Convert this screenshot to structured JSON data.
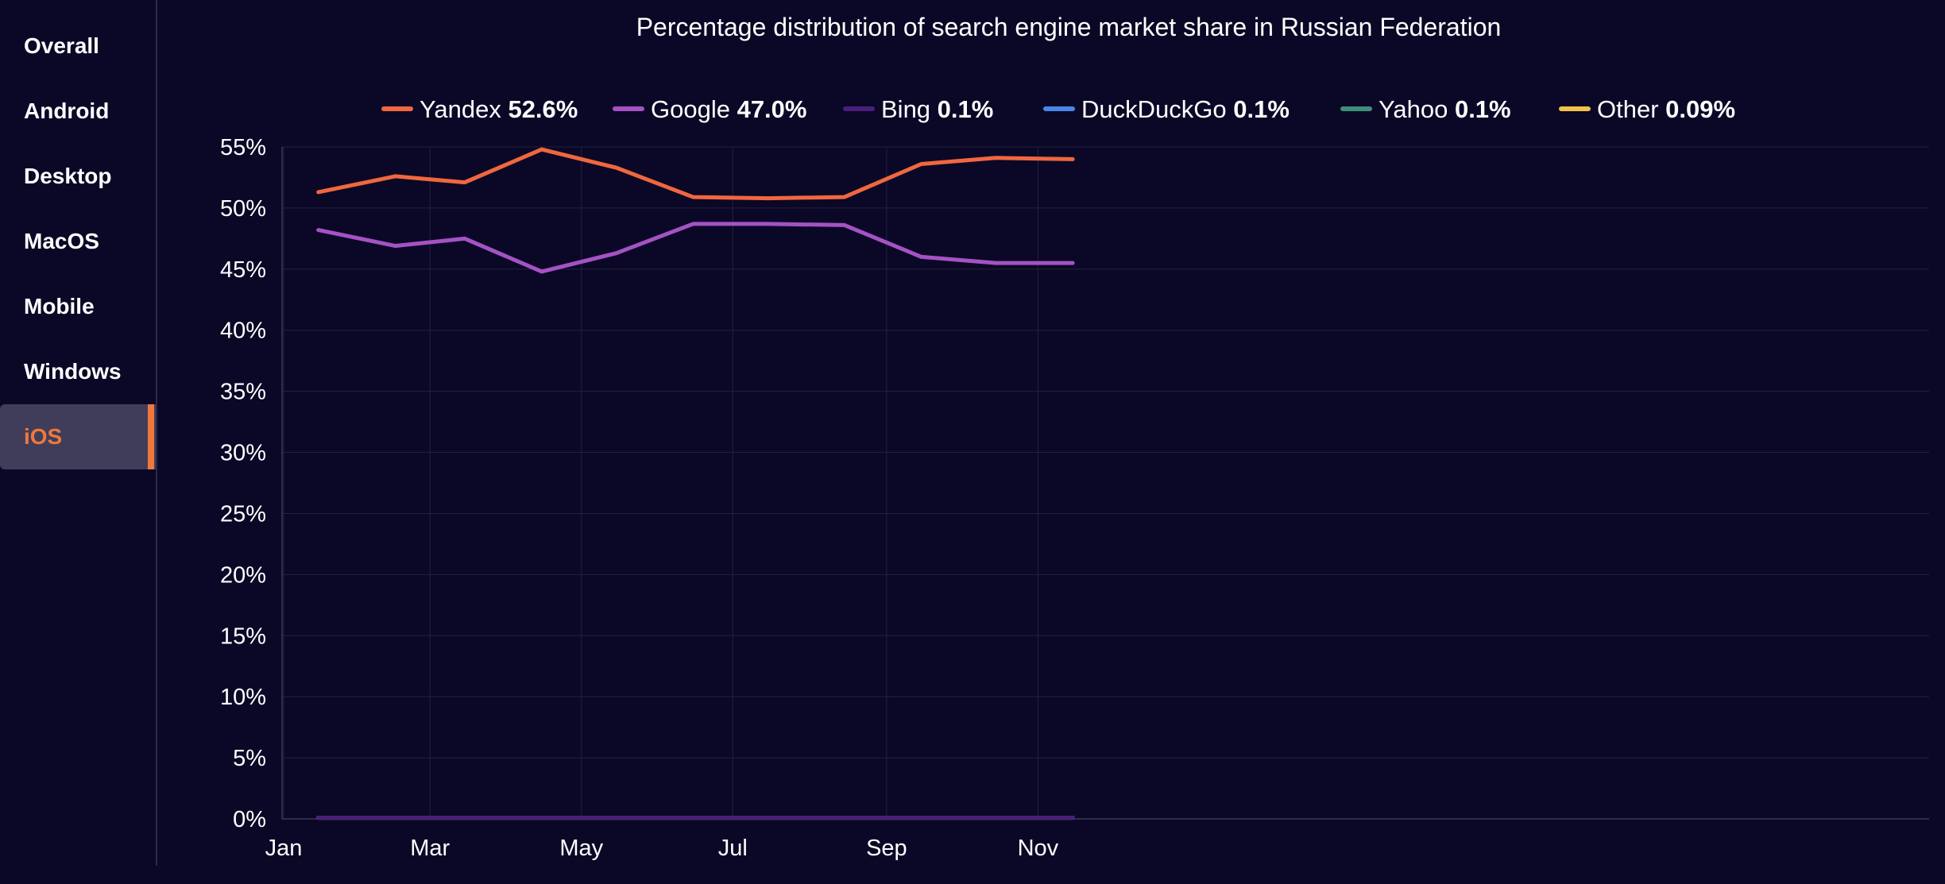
{
  "sidebar": {
    "items": [
      {
        "label": "Overall",
        "active": false
      },
      {
        "label": "Android",
        "active": false
      },
      {
        "label": "Desktop",
        "active": false
      },
      {
        "label": "MacOS",
        "active": false
      },
      {
        "label": "Mobile",
        "active": false
      },
      {
        "label": "Windows",
        "active": false
      },
      {
        "label": "iOS",
        "active": true
      }
    ]
  },
  "colors": {
    "background": "#0a0826",
    "active_accent": "#f0783c",
    "active_bg": "#403d5a",
    "grid": "#23213d",
    "text": "#ffffff"
  },
  "chart_data": {
    "type": "line",
    "title": "Percentage distribution of search engine market share in Russian Federation",
    "xlabel": "",
    "ylabel": "",
    "x_ticks": [
      "Jan",
      "Mar",
      "May",
      "Jul",
      "Sep",
      "Nov"
    ],
    "x": [
      "2023-01-15",
      "2023-02-15",
      "2023-03-15",
      "2023-04-15",
      "2023-05-15",
      "2023-06-15",
      "2023-07-15",
      "2023-08-15",
      "2023-09-15",
      "2023-10-15",
      "2023-11-15"
    ],
    "ylim": [
      0,
      55
    ],
    "y_ticks": [
      "0%",
      "5%",
      "10%",
      "15%",
      "20%",
      "25%",
      "30%",
      "35%",
      "40%",
      "45%",
      "50%",
      "55%"
    ],
    "grid": true,
    "legend_position": "top",
    "series": [
      {
        "name": "Yandex",
        "legend_value": "52.6%",
        "color": "#f0673f",
        "values": [
          51.3,
          52.6,
          52.1,
          54.8,
          53.3,
          50.9,
          50.8,
          50.9,
          53.6,
          54.1,
          54.0
        ]
      },
      {
        "name": "Google",
        "legend_value": "47.0%",
        "color": "#a552c4",
        "values": [
          48.2,
          46.9,
          47.5,
          44.8,
          46.3,
          48.7,
          48.7,
          48.6,
          46.0,
          45.5,
          45.5
        ]
      },
      {
        "name": "Bing",
        "legend_value": "0.1%",
        "color": "#4a1f7a",
        "values": [
          0.1,
          0.1,
          0.1,
          0.1,
          0.1,
          0.1,
          0.1,
          0.1,
          0.1,
          0.1,
          0.1
        ]
      },
      {
        "name": "DuckDuckGo",
        "legend_value": "0.1%",
        "color": "#4a86e8",
        "values": [
          0.1,
          0.1,
          0.1,
          0.1,
          0.1,
          0.1,
          0.1,
          0.1,
          0.1,
          0.1,
          0.1
        ]
      },
      {
        "name": "Yahoo",
        "legend_value": "0.1%",
        "color": "#3d8f7a",
        "values": [
          0.1,
          0.1,
          0.1,
          0.1,
          0.1,
          0.1,
          0.1,
          0.1,
          0.1,
          0.1,
          0.1
        ]
      },
      {
        "name": "Other",
        "legend_value": "0.09%",
        "color": "#f2c14e",
        "values": [
          0.09,
          0.09,
          0.09,
          0.09,
          0.09,
          0.09,
          0.09,
          0.09,
          0.09,
          0.09,
          0.09
        ]
      }
    ]
  }
}
